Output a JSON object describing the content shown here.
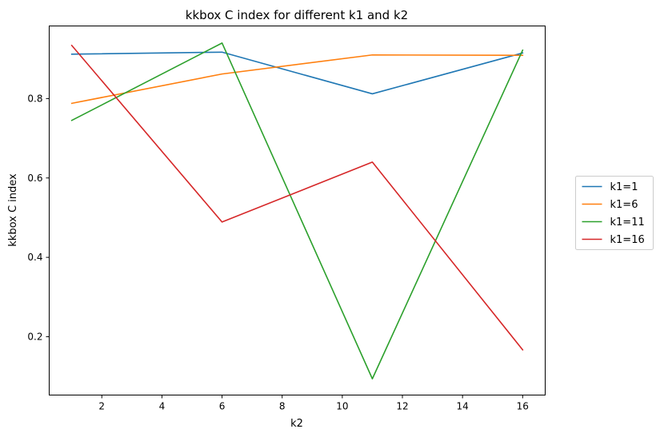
{
  "chart_data": {
    "type": "line",
    "title": "kkbox C index for different k1 and k2",
    "xlabel": "k2",
    "ylabel": "kkbox C index",
    "x": [
      1,
      6,
      11,
      16
    ],
    "xlim": [
      0.25,
      16.75
    ],
    "ylim": [
      0.053,
      0.983
    ],
    "xticks": [
      2,
      4,
      6,
      8,
      10,
      12,
      14,
      16
    ],
    "yticks": [
      0.2,
      0.4,
      0.6,
      0.8
    ],
    "grid": false,
    "legend_position": "center right, outside plot",
    "series": [
      {
        "name": "k1=1",
        "color": "#1f77b4",
        "values": [
          0.912,
          0.917,
          0.812,
          0.915
        ]
      },
      {
        "name": "k1=6",
        "color": "#ff7f0e",
        "values": [
          0.788,
          0.862,
          0.91,
          0.909
        ]
      },
      {
        "name": "k1=11",
        "color": "#2ca02c",
        "values": [
          0.745,
          0.94,
          0.094,
          0.922
        ]
      },
      {
        "name": "k1=16",
        "color": "#d62728",
        "values": [
          0.934,
          0.489,
          0.64,
          0.167
        ]
      }
    ]
  }
}
